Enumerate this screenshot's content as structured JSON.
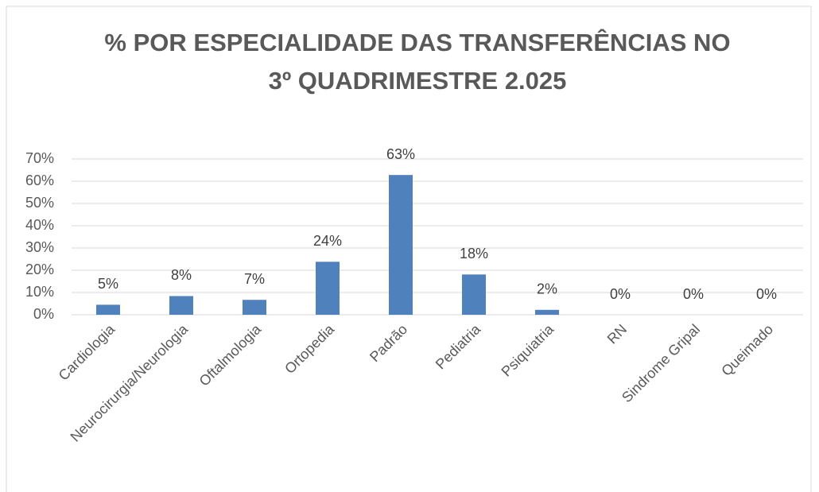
{
  "chart_data": {
    "type": "bar",
    "title": [
      "% POR ESPECIALIDADE DAS TRANSFERÊNCIAS NO",
      "3º QUADRIMESTRE 2.025"
    ],
    "categories": [
      "Cardiologia",
      "Neurocirurgia/Neurologia",
      "Oftalmologia",
      "Ortopedia",
      "Padrão",
      "Pediatria",
      "Psiquiatria",
      "RN",
      "Sindrome Gripal",
      "Queimado"
    ],
    "values": [
      4.5,
      8.4,
      6.7,
      23.8,
      62.8,
      18.1,
      2.2,
      0,
      0,
      0
    ],
    "value_labels": [
      "5%",
      "8%",
      "7%",
      "24%",
      "63%",
      "18%",
      "2%",
      "0%",
      "0%",
      "0%"
    ],
    "color": "#4f81bd",
    "ylim": [
      0,
      70
    ],
    "yticks": [
      {
        "value": 0,
        "label": "0%"
      },
      {
        "value": 10,
        "label": "10%"
      },
      {
        "value": 20,
        "label": "20%"
      },
      {
        "value": 30,
        "label": "30%"
      },
      {
        "value": 40,
        "label": "40%"
      },
      {
        "value": 50,
        "label": "50%"
      },
      {
        "value": 60,
        "label": "60%"
      },
      {
        "value": 70,
        "label": "70%"
      }
    ],
    "grid": true
  }
}
